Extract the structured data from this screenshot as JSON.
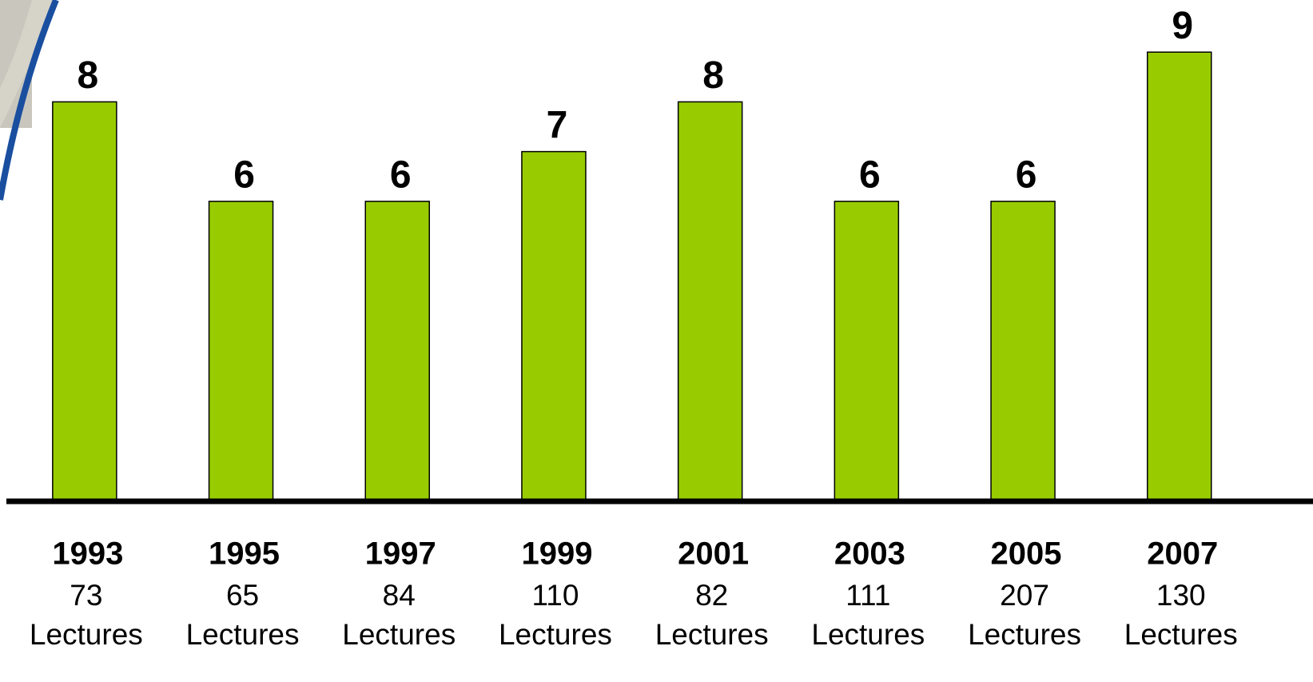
{
  "chart_data": {
    "type": "bar",
    "categories": [
      "1993",
      "1995",
      "1997",
      "1999",
      "2001",
      "2003",
      "2005",
      "2007"
    ],
    "lecture_counts": [
      73,
      65,
      84,
      110,
      82,
      111,
      207,
      130
    ],
    "lecture_unit": "Lectures",
    "values": [
      8,
      6,
      6,
      7,
      8,
      6,
      6,
      9
    ],
    "color": "#99cc00",
    "ylim": [
      0,
      10
    ]
  }
}
